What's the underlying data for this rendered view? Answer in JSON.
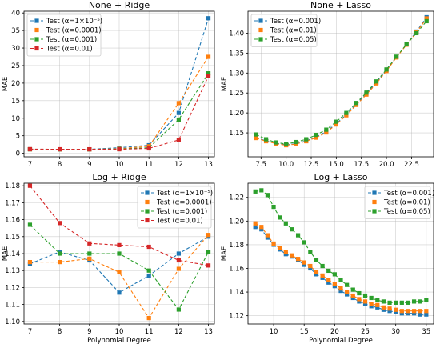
{
  "chart_data": [
    {
      "type": "line",
      "title": "None + Ridge",
      "xlabel": "",
      "ylabel": "MAE",
      "x": [
        7,
        8,
        9,
        10,
        11,
        12,
        13
      ],
      "xlim": [
        6.8,
        13.2
      ],
      "ylim": [
        -1.0,
        40.5
      ],
      "xticks": [
        7,
        8,
        9,
        10,
        11,
        12,
        13
      ],
      "yticks": [
        0,
        5,
        10,
        15,
        20,
        25,
        30,
        35,
        40
      ],
      "grid": true,
      "legend": "top-left",
      "series": [
        {
          "name": "Test (α=1×10⁻⁵)",
          "color": "#1f77b4",
          "values": [
            1.15,
            1.13,
            1.14,
            1.6,
            2.3,
            11.5,
            38.5
          ]
        },
        {
          "name": "Test (α=0.0001)",
          "color": "#ff7f0e",
          "values": [
            1.14,
            1.13,
            1.13,
            1.3,
            2.0,
            14.3,
            27.5
          ]
        },
        {
          "name": "Test (α=0.001)",
          "color": "#2ca02c",
          "values": [
            1.16,
            1.14,
            1.14,
            1.2,
            1.6,
            9.6,
            22.8
          ]
        },
        {
          "name": "Test (α=0.01)",
          "color": "#d62728",
          "values": [
            1.18,
            1.16,
            1.15,
            1.15,
            1.4,
            3.8,
            22.0
          ]
        }
      ]
    },
    {
      "type": "line",
      "title": "None + Lasso",
      "xlabel": "",
      "ylabel": "MAE",
      "x": [
        7,
        8,
        9,
        10,
        11,
        12,
        13,
        14,
        15,
        16,
        17,
        18,
        19,
        20,
        21,
        22,
        23,
        24
      ],
      "xlim": [
        6.2,
        24.7
      ],
      "ylim": [
        1.09,
        1.455
      ],
      "xticks": [
        7.5,
        10.0,
        12.5,
        15.0,
        17.5,
        20.0,
        22.5
      ],
      "xtick_labels": [
        "7.5",
        "10.0",
        "12.5",
        "15.0",
        "17.5",
        "20.0",
        "22.5"
      ],
      "yticks": [
        1.15,
        1.2,
        1.25,
        1.3,
        1.35,
        1.4
      ],
      "ytick_labels": [
        "1.15",
        "1.20",
        "1.25",
        "1.30",
        "1.35",
        "1.40"
      ],
      "grid": true,
      "legend": "top-left",
      "series": [
        {
          "name": "Test (α=0.001)",
          "color": "#1f77b4",
          "values": [
            1.138,
            1.13,
            1.124,
            1.12,
            1.123,
            1.13,
            1.14,
            1.153,
            1.173,
            1.196,
            1.222,
            1.248,
            1.276,
            1.307,
            1.34,
            1.372,
            1.404,
            1.44
          ]
        },
        {
          "name": "Test (α=0.01)",
          "color": "#ff7f0e",
          "values": [
            1.137,
            1.129,
            1.123,
            1.119,
            1.122,
            1.129,
            1.138,
            1.151,
            1.171,
            1.194,
            1.22,
            1.246,
            1.274,
            1.305,
            1.339,
            1.371,
            1.402,
            1.437
          ]
        },
        {
          "name": "Test (α=0.05)",
          "color": "#2ca02c",
          "values": [
            1.146,
            1.134,
            1.126,
            1.122,
            1.127,
            1.134,
            1.145,
            1.158,
            1.178,
            1.2,
            1.225,
            1.251,
            1.279,
            1.309,
            1.341,
            1.372,
            1.4,
            1.43
          ]
        }
      ]
    },
    {
      "type": "line",
      "title": "Log + Ridge",
      "xlabel": "Polynomial Degree",
      "ylabel": "MAE",
      "x": [
        7,
        8,
        9,
        10,
        11,
        12,
        13
      ],
      "xlim": [
        6.8,
        13.2
      ],
      "ylim": [
        1.0985,
        1.1815
      ],
      "xticks": [
        7,
        8,
        9,
        10,
        11,
        12,
        13
      ],
      "yticks": [
        1.1,
        1.11,
        1.12,
        1.13,
        1.14,
        1.15,
        1.16,
        1.17,
        1.18
      ],
      "ytick_labels": [
        "1.10",
        "1.11",
        "1.12",
        "1.13",
        "1.14",
        "1.15",
        "1.16",
        "1.17",
        "1.18"
      ],
      "grid": true,
      "legend": "top-right",
      "series": [
        {
          "name": "Test (α=1×10⁻⁵)",
          "color": "#1f77b4",
          "values": [
            1.134,
            1.141,
            1.136,
            1.117,
            1.127,
            1.14,
            1.15
          ]
        },
        {
          "name": "Test (α=0.0001)",
          "color": "#ff7f0e",
          "values": [
            1.135,
            1.135,
            1.137,
            1.129,
            1.102,
            1.131,
            1.151
          ]
        },
        {
          "name": "Test (α=0.001)",
          "color": "#2ca02c",
          "values": [
            1.157,
            1.14,
            1.14,
            1.14,
            1.13,
            1.107,
            1.141
          ]
        },
        {
          "name": "Test (α=0.01)",
          "color": "#d62728",
          "values": [
            1.18,
            1.158,
            1.146,
            1.145,
            1.144,
            1.136,
            1.133
          ]
        }
      ]
    },
    {
      "type": "line",
      "title": "Log + Lasso",
      "xlabel": "Polynomial Degree",
      "ylabel": "MAE",
      "x": [
        7,
        8,
        9,
        10,
        11,
        12,
        13,
        14,
        15,
        16,
        17,
        18,
        19,
        20,
        21,
        22,
        23,
        24,
        25,
        26,
        27,
        28,
        29,
        30,
        31,
        32,
        33,
        34,
        35
      ],
      "xlim": [
        5.8,
        36.2
      ],
      "ylim": [
        1.113,
        1.232
      ],
      "xticks": [
        10,
        15,
        20,
        25,
        30,
        35
      ],
      "yticks": [
        1.12,
        1.14,
        1.16,
        1.18,
        1.2,
        1.22
      ],
      "ytick_labels": [
        "1.12",
        "1.14",
        "1.16",
        "1.18",
        "1.20",
        "1.22"
      ],
      "grid": true,
      "legend": "top-right",
      "series": [
        {
          "name": "Test (α=0.001)",
          "color": "#1f77b4",
          "values": [
            1.195,
            1.193,
            1.186,
            1.18,
            1.176,
            1.172,
            1.17,
            1.167,
            1.163,
            1.16,
            1.155,
            1.152,
            1.148,
            1.145,
            1.141,
            1.138,
            1.135,
            1.132,
            1.13,
            1.128,
            1.127,
            1.125,
            1.124,
            1.123,
            1.122,
            1.122,
            1.122,
            1.121,
            1.121
          ]
        },
        {
          "name": "Test (α=0.01)",
          "color": "#ff7f0e",
          "values": [
            1.198,
            1.195,
            1.188,
            1.181,
            1.177,
            1.174,
            1.171,
            1.168,
            1.165,
            1.162,
            1.157,
            1.154,
            1.15,
            1.147,
            1.143,
            1.14,
            1.137,
            1.134,
            1.132,
            1.13,
            1.129,
            1.127,
            1.126,
            1.125,
            1.124,
            1.124,
            1.124,
            1.124,
            1.124
          ]
        },
        {
          "name": "Test (α=0.05)",
          "color": "#2ca02c",
          "values": [
            1.225,
            1.226,
            1.222,
            1.212,
            1.203,
            1.198,
            1.193,
            1.188,
            1.182,
            1.174,
            1.167,
            1.162,
            1.158,
            1.155,
            1.15,
            1.146,
            1.142,
            1.139,
            1.137,
            1.135,
            1.133,
            1.132,
            1.131,
            1.131,
            1.131,
            1.131,
            1.132,
            1.132,
            1.133
          ]
        }
      ]
    }
  ]
}
